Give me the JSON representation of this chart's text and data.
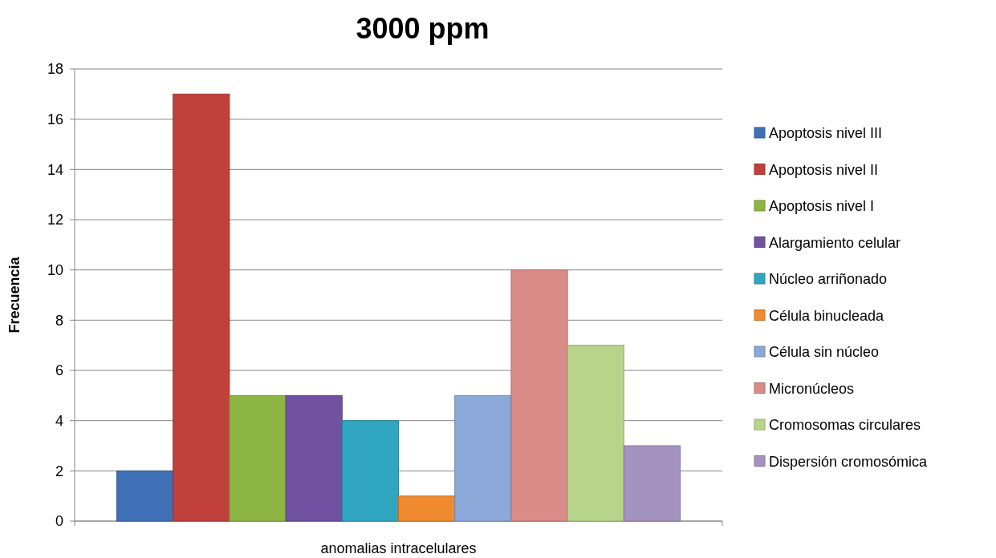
{
  "chart_data": {
    "type": "bar",
    "title": "3000 ppm",
    "ylabel": "Frecuencia",
    "categories": [
      "anomalias intracelulares"
    ],
    "series": [
      {
        "name": "Apoptosis nivel III",
        "color": "#3f6fb5",
        "values": [
          2
        ]
      },
      {
        "name": "Apoptosis nivel II",
        "color": "#c0403c",
        "values": [
          17
        ]
      },
      {
        "name": "Apoptosis nivel I",
        "color": "#8db543",
        "values": [
          5
        ]
      },
      {
        "name": "Alargamiento celular",
        "color": "#7152a0",
        "values": [
          5
        ]
      },
      {
        "name": "Núcleo arriñonado",
        "color": "#31a6c0",
        "values": [
          4
        ]
      },
      {
        "name": "Célula binucleada",
        "color": "#ef8a2f",
        "values": [
          1
        ]
      },
      {
        "name": "Célula sin núcleo",
        "color": "#8ba8d8",
        "values": [
          5
        ]
      },
      {
        "name": "Micronúcleos",
        "color": "#d98b88",
        "values": [
          10
        ]
      },
      {
        "name": "Cromosomas circulares",
        "color": "#b8d38a",
        "values": [
          7
        ]
      },
      {
        "name": "Dispersión cromosómica",
        "color": "#a493c0",
        "values": [
          3
        ]
      }
    ],
    "ylim": [
      0,
      18
    ],
    "yticks": [
      0,
      2,
      4,
      6,
      8,
      10,
      12,
      14,
      16,
      18
    ],
    "grid": "y",
    "legend": "right"
  }
}
